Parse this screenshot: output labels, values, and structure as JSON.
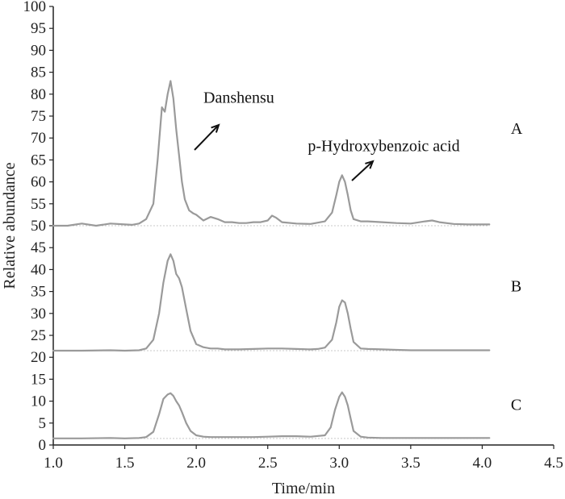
{
  "chart_data": {
    "type": "line",
    "title": "",
    "xlabel": "Time/min",
    "ylabel": "Relative abundance",
    "xlim": [
      1.0,
      4.5
    ],
    "ylim": [
      0,
      100
    ],
    "x_ticks": [
      "1.0",
      "1.5",
      "2.0",
      "2.5",
      "3.0",
      "3.5",
      "4.0",
      "4.5"
    ],
    "y_ticks": [
      "0",
      "5",
      "10",
      "15",
      "20",
      "25",
      "30",
      "35",
      "40",
      "45",
      "50",
      "55",
      "60",
      "65",
      "70",
      "75",
      "80",
      "85",
      "90",
      "95",
      "100"
    ],
    "grid": false,
    "line_color": "#9a9a9a",
    "series": [
      {
        "name": "A",
        "x": [
          1.0,
          1.1,
          1.2,
          1.3,
          1.4,
          1.5,
          1.55,
          1.6,
          1.65,
          1.7,
          1.73,
          1.76,
          1.78,
          1.8,
          1.82,
          1.84,
          1.86,
          1.88,
          1.9,
          1.92,
          1.95,
          1.98,
          2.0,
          2.05,
          2.1,
          2.15,
          2.2,
          2.25,
          2.3,
          2.35,
          2.4,
          2.45,
          2.5,
          2.53,
          2.56,
          2.6,
          2.7,
          2.8,
          2.9,
          2.95,
          2.98,
          3.0,
          3.02,
          3.04,
          3.06,
          3.08,
          3.1,
          3.15,
          3.2,
          3.3,
          3.4,
          3.5,
          3.6,
          3.65,
          3.7,
          3.8,
          3.9,
          4.0,
          4.05
        ],
        "y": [
          50,
          50,
          50.5,
          50,
          50.5,
          50.3,
          50.2,
          50.5,
          51.5,
          55,
          65,
          77,
          76,
          80,
          83,
          79,
          72,
          66,
          60,
          56,
          53.5,
          52.8,
          52.5,
          51.2,
          52,
          51.5,
          50.8,
          50.8,
          50.6,
          50.6,
          50.8,
          50.8,
          51.2,
          52.3,
          51.8,
          50.8,
          50.5,
          50.4,
          51,
          53,
          57,
          60,
          61.5,
          60,
          57,
          53.5,
          51.5,
          51,
          51,
          50.8,
          50.6,
          50.5,
          51,
          51.2,
          50.8,
          50.4,
          50.3,
          50.3,
          50.3
        ]
      },
      {
        "name": "B",
        "x": [
          1.0,
          1.2,
          1.4,
          1.5,
          1.6,
          1.65,
          1.7,
          1.74,
          1.77,
          1.8,
          1.82,
          1.84,
          1.86,
          1.88,
          1.9,
          1.93,
          1.96,
          2.0,
          2.05,
          2.1,
          2.15,
          2.2,
          2.3,
          2.4,
          2.5,
          2.6,
          2.7,
          2.8,
          2.85,
          2.9,
          2.95,
          2.98,
          3.0,
          3.02,
          3.04,
          3.06,
          3.08,
          3.1,
          3.15,
          3.2,
          3.3,
          3.4,
          3.5,
          3.6,
          3.7,
          3.8,
          3.9,
          4.0,
          4.05
        ],
        "y": [
          21.5,
          21.5,
          21.6,
          21.5,
          21.6,
          22,
          24,
          30,
          37,
          42,
          43.5,
          42,
          39,
          38,
          36,
          31,
          26,
          23,
          22.3,
          22,
          22,
          21.8,
          21.8,
          21.9,
          22,
          22,
          21.9,
          21.8,
          21.9,
          22.2,
          24,
          28,
          31.5,
          33,
          32.5,
          30,
          26.5,
          23.5,
          22,
          21.9,
          21.8,
          21.7,
          21.6,
          21.6,
          21.6,
          21.6,
          21.6,
          21.6,
          21.6
        ]
      },
      {
        "name": "C",
        "x": [
          1.0,
          1.2,
          1.4,
          1.5,
          1.6,
          1.65,
          1.7,
          1.74,
          1.77,
          1.8,
          1.82,
          1.84,
          1.86,
          1.88,
          1.9,
          1.93,
          1.96,
          2.0,
          2.05,
          2.1,
          2.2,
          2.3,
          2.4,
          2.5,
          2.6,
          2.7,
          2.8,
          2.9,
          2.94,
          2.97,
          3.0,
          3.02,
          3.04,
          3.06,
          3.08,
          3.1,
          3.15,
          3.2,
          3.3,
          3.4,
          3.5,
          3.6,
          3.7,
          3.8,
          3.9,
          4.0,
          4.05
        ],
        "y": [
          1.5,
          1.5,
          1.6,
          1.5,
          1.6,
          1.8,
          3,
          7,
          10.5,
          11.5,
          11.8,
          11.2,
          10,
          9,
          7.5,
          5,
          3.2,
          2.2,
          1.9,
          1.8,
          1.8,
          1.8,
          1.8,
          1.9,
          2,
          2,
          1.9,
          2.2,
          4,
          8,
          11,
          12,
          11,
          9,
          6,
          3.2,
          1.9,
          1.7,
          1.6,
          1.6,
          1.6,
          1.6,
          1.6,
          1.6,
          1.6,
          1.6,
          1.6
        ]
      }
    ],
    "annotations": [
      {
        "text": "Danshensu",
        "x": 2.05,
        "y": 78
      },
      {
        "text": "p-Hydroxybenzoic acid",
        "x": 2.78,
        "y": 67
      }
    ],
    "panel_labels": [
      {
        "text": "A",
        "x": 4.2,
        "y": 71
      },
      {
        "text": "B",
        "x": 4.2,
        "y": 35
      },
      {
        "text": "C",
        "x": 4.2,
        "y": 8
      }
    ]
  }
}
